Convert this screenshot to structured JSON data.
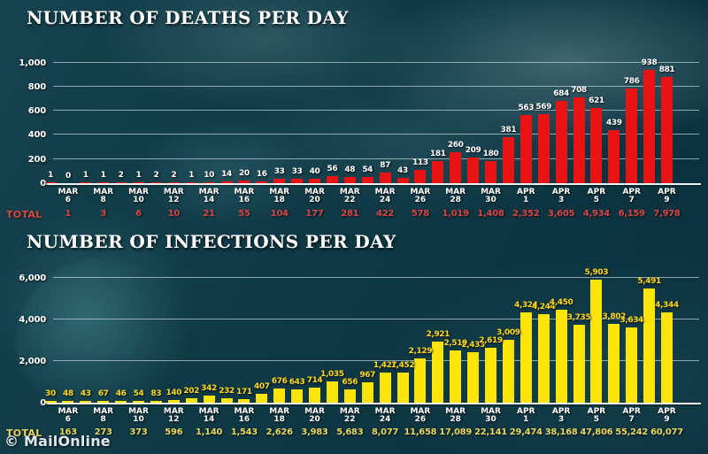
{
  "watermark": "© MailOnline",
  "chart_data": [
    {
      "type": "bar",
      "title": "NUMBER OF DEATHS PER DAY",
      "grid": true,
      "ylim": [
        0,
        1000
      ],
      "yticks": [
        0,
        200,
        400,
        600,
        800,
        1000
      ],
      "ytick_labels": [
        "0",
        "200",
        "400",
        "600",
        "800",
        "1,000"
      ],
      "xtick_every": 2,
      "xtick_start_index": 1,
      "xtick_labels": [
        [
          "MAR",
          "6"
        ],
        [
          "MAR",
          "8"
        ],
        [
          "MAR",
          "10"
        ],
        [
          "MAR",
          "12"
        ],
        [
          "MAR",
          "14"
        ],
        [
          "MAR",
          "16"
        ],
        [
          "MAR",
          "18"
        ],
        [
          "MAR",
          "20"
        ],
        [
          "MAR",
          "22"
        ],
        [
          "MAR",
          "24"
        ],
        [
          "MAR",
          "26"
        ],
        [
          "MAR",
          "28"
        ],
        [
          "MAR",
          "30"
        ],
        [
          "APR",
          "1"
        ],
        [
          "APR",
          "3"
        ],
        [
          "APR",
          "5"
        ],
        [
          "APR",
          "7"
        ],
        [
          "APR",
          "9"
        ]
      ],
      "values": [
        1,
        0,
        1,
        1,
        2,
        1,
        2,
        2,
        1,
        10,
        14,
        20,
        16,
        33,
        33,
        40,
        56,
        48,
        54,
        87,
        43,
        113,
        181,
        260,
        209,
        180,
        381,
        563,
        569,
        684,
        708,
        621,
        439,
        786,
        938,
        881
      ],
      "value_labels": [
        "1",
        "0",
        "1",
        "1",
        "2",
        "1",
        "2",
        "2",
        "1",
        "10",
        "14",
        "20",
        "16",
        "33",
        "33",
        "40",
        "56",
        "48",
        "54",
        "87",
        "43",
        "113",
        "181",
        "260",
        "209",
        "180",
        "381",
        "563",
        "569",
        "684",
        "708",
        "621",
        "439",
        "786",
        "938",
        "881"
      ],
      "totals": {
        "label": "TOTAL",
        "values": [
          "1",
          "3",
          "6",
          "10",
          "21",
          "55",
          "104",
          "177",
          "281",
          "422",
          "578",
          "1,019",
          "1,408",
          "2,352",
          "3,605",
          "4,934",
          "6,159",
          "7,978"
        ]
      },
      "bar_color": "#e91314",
      "value_label_color": "#ffffff",
      "totals_color": "#d64747"
    },
    {
      "type": "bar",
      "title": "NUMBER OF INFECTIONS PER DAY",
      "grid": true,
      "ylim": [
        0,
        6000
      ],
      "yticks": [
        0,
        2000,
        4000,
        6000
      ],
      "ytick_labels": [
        "0",
        "2,000",
        "4,000",
        "6,000"
      ],
      "xtick_every": 2,
      "xtick_start_index": 1,
      "xtick_labels": [
        [
          "MAR",
          "6"
        ],
        [
          "MAR",
          "8"
        ],
        [
          "MAR",
          "10"
        ],
        [
          "MAR",
          "12"
        ],
        [
          "MAR",
          "14"
        ],
        [
          "MAR",
          "16"
        ],
        [
          "MAR",
          "18"
        ],
        [
          "MAR",
          "20"
        ],
        [
          "MAR",
          "22"
        ],
        [
          "MAR",
          "24"
        ],
        [
          "MAR",
          "26"
        ],
        [
          "MAR",
          "28"
        ],
        [
          "MAR",
          "30"
        ],
        [
          "APR",
          "1"
        ],
        [
          "APR",
          "3"
        ],
        [
          "APR",
          "5"
        ],
        [
          "APR",
          "7"
        ],
        [
          "APR",
          "9"
        ]
      ],
      "values": [
        30,
        48,
        43,
        67,
        46,
        54,
        83,
        140,
        202,
        342,
        232,
        171,
        407,
        676,
        643,
        714,
        1035,
        656,
        967,
        1427,
        1452,
        2129,
        2921,
        2510,
        2433,
        2619,
        3009,
        4324,
        4244,
        4450,
        3735,
        5903,
        3802,
        3634,
        5491,
        4344
      ],
      "value_labels": [
        "30",
        "48",
        "43",
        "67",
        "46",
        "54",
        "83",
        "140",
        "202",
        "342",
        "232",
        "171",
        "407",
        "676",
        "643",
        "714",
        "1,035",
        "656",
        "967",
        "1,427",
        "1,452",
        "2,129",
        "2,921",
        "2,510",
        "2,433",
        "2,619",
        "3,009",
        "4,324",
        "4,244",
        "4,450",
        "3,735",
        "5,903",
        "3,802",
        "3,634",
        "5,491",
        "4,344"
      ],
      "totals": {
        "label": "TOTAL",
        "values": [
          "163",
          "273",
          "373",
          "596",
          "1,140",
          "1,543",
          "2,626",
          "3,983",
          "5,683",
          "8,077",
          "11,658",
          "17,089",
          "22,141",
          "29,474",
          "38,168",
          "47,806",
          "55,242",
          "60,077"
        ]
      },
      "bar_color": "#fce30a",
      "value_label_color": "#fed81c",
      "totals_color": "#e6d65f"
    }
  ]
}
